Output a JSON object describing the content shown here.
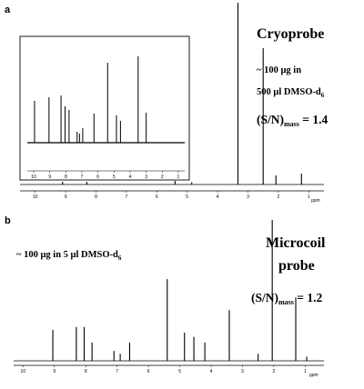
{
  "chart_data": [
    {
      "type": "line",
      "panel": "a",
      "title": "Cryoprobe",
      "sample_line1": "~ 100 μg in",
      "sample_line2": "500 μl DMSO-d",
      "sample_line2_sub": "6",
      "sn_prefix": "(S/N)",
      "sn_sub": "mass",
      "sn_suffix": " = 1.4",
      "sn_value": 1.4,
      "xlabel": "ppm",
      "xlim": [
        10.5,
        0.5
      ],
      "x_ticks": [
        10,
        9,
        8,
        7,
        6,
        5,
        4,
        3,
        2,
        1
      ],
      "peaks": [
        {
          "ppm": 3.33,
          "height": 1.0
        },
        {
          "ppm": 2.5,
          "height": 0.75
        },
        {
          "ppm": 1.24,
          "height": 0.06
        },
        {
          "ppm": 2.08,
          "height": 0.05
        },
        {
          "ppm": 5.4,
          "height": 0.02
        },
        {
          "ppm": 8.3,
          "height": 0.015
        },
        {
          "ppm": 9.1,
          "height": 0.015
        },
        {
          "ppm": 4.85,
          "height": 0.012
        }
      ],
      "inset": {
        "x_ticks": [
          10,
          9,
          8,
          7,
          6,
          5,
          4,
          3,
          2,
          1
        ],
        "peaks": [
          {
            "ppm": 9.95,
            "height": 0.46
          },
          {
            "ppm": 9.05,
            "height": 0.5
          },
          {
            "ppm": 8.3,
            "height": 0.52
          },
          {
            "ppm": 8.05,
            "height": 0.4
          },
          {
            "ppm": 7.8,
            "height": 0.36
          },
          {
            "ppm": 7.3,
            "height": 0.12
          },
          {
            "ppm": 7.15,
            "height": 0.1
          },
          {
            "ppm": 6.95,
            "height": 0.16
          },
          {
            "ppm": 6.25,
            "height": 0.32
          },
          {
            "ppm": 5.4,
            "height": 0.88
          },
          {
            "ppm": 4.85,
            "height": 0.3
          },
          {
            "ppm": 4.6,
            "height": 0.24
          },
          {
            "ppm": 3.5,
            "height": 0.95
          },
          {
            "ppm": 3.0,
            "height": 0.33
          }
        ]
      }
    },
    {
      "type": "line",
      "panel": "b",
      "title_line1": "Microcoil",
      "title_line2": "probe",
      "sample_line": "~ 100 μg in 5 μl DMSO-d",
      "sample_line_sub": "6",
      "sn_prefix": "(S/N)",
      "sn_sub": "mass",
      "sn_suffix": " = 1.2",
      "sn_value": 1.2,
      "xlabel": "ppm",
      "xlim": [
        10.3,
        0.4
      ],
      "x_ticks": [
        10,
        9,
        8,
        7,
        6,
        5,
        4,
        3,
        2,
        1
      ],
      "peaks": [
        {
          "ppm": 2.05,
          "height": 1.0
        },
        {
          "ppm": 5.4,
          "height": 0.58
        },
        {
          "ppm": 1.3,
          "height": 0.45
        },
        {
          "ppm": 3.42,
          "height": 0.36
        },
        {
          "ppm": 8.3,
          "height": 0.24
        },
        {
          "ppm": 8.05,
          "height": 0.24
        },
        {
          "ppm": 9.05,
          "height": 0.22
        },
        {
          "ppm": 4.85,
          "height": 0.2
        },
        {
          "ppm": 4.55,
          "height": 0.17
        },
        {
          "ppm": 7.8,
          "height": 0.13
        },
        {
          "ppm": 6.6,
          "height": 0.13
        },
        {
          "ppm": 4.2,
          "height": 0.13
        },
        {
          "ppm": 7.1,
          "height": 0.07
        },
        {
          "ppm": 6.9,
          "height": 0.05
        },
        {
          "ppm": 2.5,
          "height": 0.05
        },
        {
          "ppm": 0.95,
          "height": 0.03
        }
      ]
    }
  ]
}
